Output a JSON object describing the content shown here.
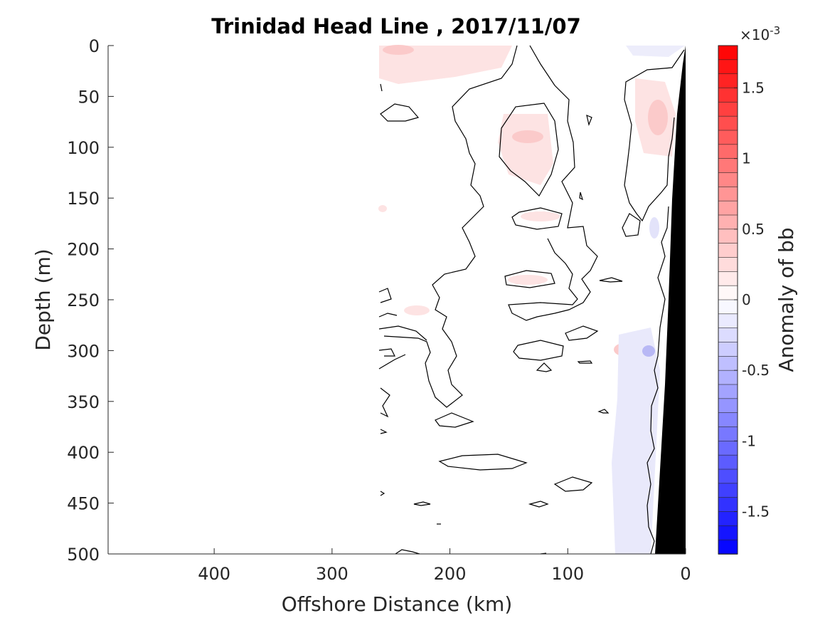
{
  "chart_data": {
    "type": "contour",
    "title": "Trinidad Head Line , 2017/11/07",
    "xlabel": "Offshore Distance (km)",
    "ylabel": "Depth (m)",
    "xlim": [
      490,
      0
    ],
    "ylim": [
      0,
      500
    ],
    "x_reversed": true,
    "y_reversed": true,
    "x_ticks": [
      400,
      300,
      200,
      100,
      0
    ],
    "x_tick_labels": [
      "400",
      "300",
      "200",
      "100",
      "0"
    ],
    "y_ticks": [
      0,
      50,
      100,
      150,
      200,
      250,
      300,
      350,
      400,
      450,
      500
    ],
    "y_tick_labels": [
      "0",
      "50",
      "100",
      "150",
      "200",
      "250",
      "300",
      "350",
      "400",
      "450",
      "500"
    ],
    "data_extent_km": [
      0,
      265
    ],
    "colorbar": {
      "label": "Anomaly of bb",
      "exponent": "×10",
      "exponent_power": "-3",
      "range": [
        -1.8,
        1.8
      ],
      "levels": 36,
      "ticks": [
        1.5,
        1,
        0.5,
        0,
        -0.5,
        -1,
        -1.5
      ],
      "tick_labels": [
        "1.5",
        "1",
        "0.5",
        "0",
        "-0.5",
        "-1",
        "-1.5"
      ],
      "positive_color": "#ff0000",
      "negative_color": "#0000ff"
    },
    "features": [
      {
        "name": "near-surface positive anomaly",
        "x": [
          262,
          200
        ],
        "y": [
          0,
          40
        ],
        "value": 0.25
      },
      {
        "name": "mid positive anomaly",
        "x": [
          160,
          115
        ],
        "y": [
          70,
          150
        ],
        "value": 0.3
      },
      {
        "name": "inshore positive anomaly",
        "x": [
          55,
          20
        ],
        "y": [
          30,
          140
        ],
        "value": 0.35
      },
      {
        "name": "inshore negative anomaly",
        "x": [
          60,
          20
        ],
        "y": [
          250,
          500
        ],
        "value": -0.3
      },
      {
        "name": "negative spot",
        "x": [
          35,
          28
        ],
        "y": [
          295,
          305
        ],
        "value": -0.8
      }
    ],
    "bathymetry_color": "#000000"
  }
}
